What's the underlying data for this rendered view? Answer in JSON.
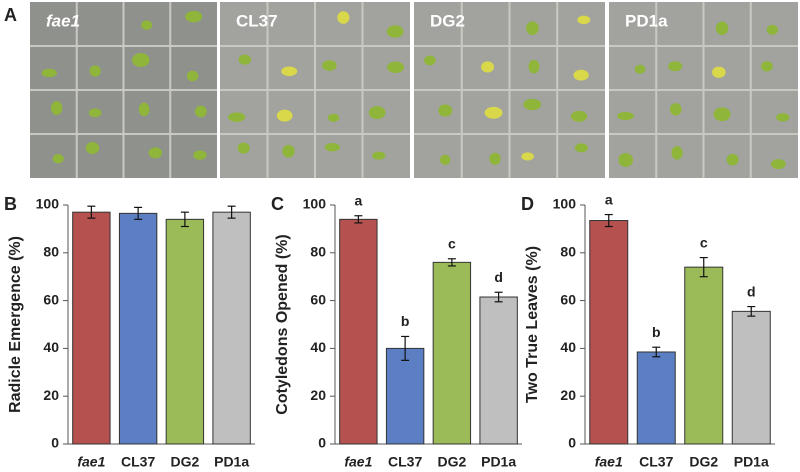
{
  "photos": {
    "panel": "A",
    "labels": [
      "fae1",
      "CL37",
      "DG2",
      "PD1a"
    ]
  },
  "chart_data": [
    {
      "type": "bar",
      "panel": "B",
      "y_label": "Radicle Emergence (%)",
      "categories": [
        "fae1",
        "CL37",
        "DG2",
        "PD1a"
      ],
      "values": [
        97,
        96.5,
        94,
        97
      ],
      "errors": [
        2.5,
        2.5,
        3,
        2.5
      ],
      "colors": [
        "#b5524f",
        "#5b7fc2",
        "#9bbb59",
        "#bfbfbf"
      ],
      "ylim": [
        0,
        100
      ],
      "yticks": [
        0,
        20,
        40,
        60,
        80,
        100
      ]
    },
    {
      "type": "bar",
      "panel": "C",
      "y_label": "Cotyledons Opened (%)",
      "categories": [
        "fae1",
        "CL37",
        "DG2",
        "PD1a"
      ],
      "values": [
        94,
        40,
        76,
        61.5
      ],
      "errors": [
        1.5,
        5,
        1.5,
        2
      ],
      "annotations": [
        "a",
        "b",
        "c",
        "d"
      ],
      "colors": [
        "#b5524f",
        "#5b7fc2",
        "#9bbb59",
        "#bfbfbf"
      ],
      "ylim": [
        0,
        100
      ],
      "yticks": [
        0,
        20,
        40,
        60,
        80,
        100
      ]
    },
    {
      "type": "bar",
      "panel": "D",
      "y_label": "Two True Leaves (%)",
      "categories": [
        "fae1",
        "CL37",
        "DG2",
        "PD1a"
      ],
      "values": [
        93.5,
        38.5,
        74,
        55.5
      ],
      "errors": [
        2.5,
        2,
        4,
        2
      ],
      "annotations": [
        "a",
        "b",
        "c",
        "d"
      ],
      "colors": [
        "#b5524f",
        "#5b7fc2",
        "#9bbb59",
        "#bfbfbf"
      ],
      "ylim": [
        0,
        100
      ],
      "yticks": [
        0,
        20,
        40,
        60,
        80,
        100
      ]
    }
  ]
}
